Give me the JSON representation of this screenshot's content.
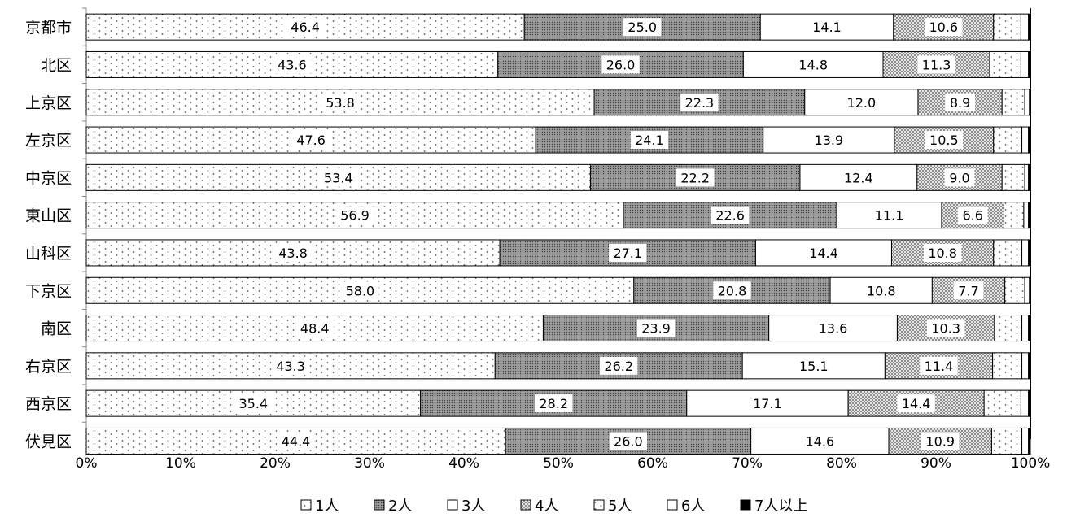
{
  "chart_data": {
    "type": "bar",
    "orientation": "horizontal",
    "stacked": "percent",
    "categories": [
      "京都市",
      "北区",
      "上京区",
      "左京区",
      "中京区",
      "東山区",
      "山科区",
      "下京区",
      "南区",
      "右京区",
      "西京区",
      "伏見区"
    ],
    "series": [
      {
        "name": "1人",
        "values": [
          46.4,
          43.6,
          53.8,
          47.6,
          53.4,
          56.9,
          43.8,
          58.0,
          48.4,
          43.3,
          35.4,
          44.4
        ]
      },
      {
        "name": "2人",
        "values": [
          25.0,
          26.0,
          22.3,
          24.1,
          22.2,
          22.6,
          27.1,
          20.8,
          23.9,
          26.2,
          28.2,
          26.0
        ]
      },
      {
        "name": "3人",
        "values": [
          14.1,
          14.8,
          12.0,
          13.9,
          12.4,
          11.1,
          14.4,
          10.8,
          13.6,
          15.1,
          17.1,
          14.6
        ]
      },
      {
        "name": "4人",
        "values": [
          10.6,
          11.3,
          8.9,
          10.5,
          9.0,
          6.6,
          10.8,
          7.7,
          10.3,
          11.4,
          14.4,
          10.9
        ]
      },
      {
        "name": "5人",
        "values": [
          2.9,
          3.3,
          2.4,
          3.0,
          2.4,
          2.1,
          3.0,
          2.1,
          2.9,
          3.1,
          3.9,
          3.2
        ]
      },
      {
        "name": "6人",
        "values": [
          0.8,
          0.8,
          0.5,
          0.7,
          0.4,
          0.5,
          0.7,
          0.5,
          0.7,
          0.7,
          0.8,
          0.7
        ]
      },
      {
        "name": "7人以上",
        "values": [
          0.2,
          0.2,
          0.1,
          0.2,
          0.2,
          0.2,
          0.2,
          0.1,
          0.2,
          0.2,
          0.2,
          0.2
        ]
      }
    ],
    "xlim": [
      0,
      100
    ],
    "x_ticks": [
      "0%",
      "10%",
      "20%",
      "30%",
      "40%",
      "50%",
      "60%",
      "70%",
      "80%",
      "90%",
      "100%"
    ],
    "labeled_series": [
      0,
      1,
      2,
      3
    ],
    "legend_position": "bottom",
    "title": "",
    "xlabel": "",
    "ylabel": ""
  }
}
